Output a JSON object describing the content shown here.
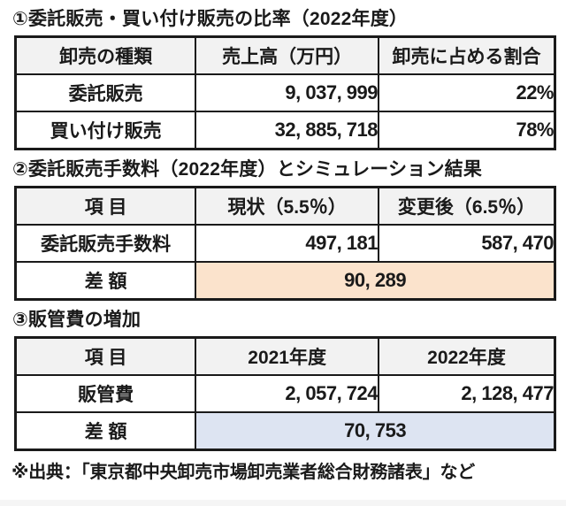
{
  "colors": {
    "border": "#1a1a1a",
    "header_bg": "#f2f2f2",
    "cell_bg": "#ffffff",
    "diff_orange_bg": "#fbe3cc",
    "diff_blue_bg": "#dde4f2",
    "bottom_strip_bg": "#f5f5f5"
  },
  "sections": [
    {
      "title": "①委託販売・買い付け販売の比率（2022年度）",
      "table": {
        "headers": [
          "卸売の種類",
          "売上高（万円）",
          "卸売に占める割合"
        ],
        "rows": [
          {
            "label": "委託販売",
            "values": [
              "9, 037, 999",
              "22%"
            ]
          },
          {
            "label": "買い付け販売",
            "values": [
              "32, 885, 718",
              "78%"
            ]
          }
        ]
      }
    },
    {
      "title": "②委託販売手数料（2022年度）とシミュレーション結果",
      "table": {
        "headers": [
          "項 目",
          "現状（5.5％）",
          "変更後（6.5％）"
        ],
        "rows": [
          {
            "label": "委託販売手数料",
            "values": [
              "497, 181",
              "587, 470"
            ]
          },
          {
            "label": "差 額",
            "merged_value": "90, 289"
          }
        ]
      }
    },
    {
      "title": "③販管費の増加",
      "table": {
        "headers": [
          "項 目",
          "2021年度",
          "2022年度"
        ],
        "rows": [
          {
            "label": "販管費",
            "values": [
              "2, 057, 724",
              "2, 128, 477"
            ]
          },
          {
            "label": "差 額",
            "merged_value": "70, 753"
          }
        ]
      }
    }
  ],
  "footnote": "※出典：「東京都中央卸売市場卸売業者総合財務諸表」など"
}
